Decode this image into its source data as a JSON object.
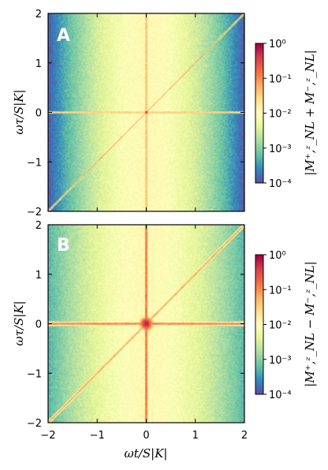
{
  "chart_data": [
    {
      "type": "heatmap",
      "panel_label": "A",
      "xlabel": "ωt/S|K|",
      "ylabel": "ωτ/S|K|",
      "xlim": [
        -2,
        2
      ],
      "ylim": [
        -2,
        2
      ],
      "x_ticks": [
        -2,
        -1,
        0,
        1,
        2
      ],
      "y_ticks": [
        -2,
        -1,
        0,
        1,
        2
      ],
      "x_tick_labels": [
        "−2",
        "−1",
        "0",
        "1",
        "2"
      ],
      "y_tick_labels": [
        "−2",
        "−1",
        "0",
        "1",
        "2"
      ],
      "colorbar": {
        "label": "|M⁺,ᶻ_NL + M⁻,ᶻ_NL|",
        "scale": "log",
        "range": [
          0.0001,
          1
        ],
        "ticks": [
          "10⁰",
          "10⁻¹",
          "10⁻²",
          "10⁻³",
          "10⁻⁴"
        ],
        "colormap": "Spectral_r"
      },
      "features": {
        "horizontal_line": {
          "y": 0
        },
        "vertical_line": {
          "x": 0
        },
        "diagonal_line": {
          "slope": 1
        },
        "anti_diagonal": false,
        "center_spread": 0.04,
        "line_half_width": 0.015,
        "background_decay": 0.9
      }
    },
    {
      "type": "heatmap",
      "panel_label": "B",
      "xlabel": "ωt/S|K|",
      "ylabel": "ωτ/S|K|",
      "xlim": [
        -2,
        2
      ],
      "ylim": [
        -2,
        2
      ],
      "x_ticks": [
        -2,
        -1,
        0,
        1,
        2
      ],
      "y_ticks": [
        -2,
        -1,
        0,
        1,
        2
      ],
      "x_tick_labels": [
        "−2",
        "−1",
        "0",
        "1",
        "2"
      ],
      "y_tick_labels": [
        "−2",
        "−1",
        "0",
        "1",
        "2"
      ],
      "colorbar": {
        "label": "|M⁺,ᶻ_NL − M⁻,ᶻ_NL|",
        "scale": "log",
        "range": [
          0.0001,
          1
        ],
        "ticks": [
          "10⁰",
          "10⁻¹",
          "10⁻²",
          "10⁻³",
          "10⁻⁴"
        ],
        "colormap": "Spectral_r"
      },
      "features": {
        "horizontal_line": {
          "y": 0
        },
        "vertical_line": {
          "x": 0
        },
        "diagonal_line": {
          "slope": 1
        },
        "anti_diagonal": true,
        "center_spread": 0.15,
        "line_half_width": 0.035,
        "background_decay": 0.55
      }
    }
  ]
}
